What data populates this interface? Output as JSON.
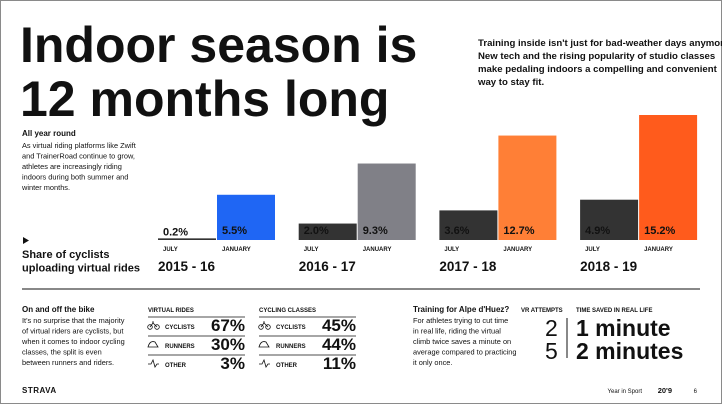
{
  "title_lines": [
    "Indoor season is",
    "12 months long"
  ],
  "intro_lines": [
    "Training inside isn't just for bad-weather days anymore.",
    "New tech and the rising popularity of studio classes",
    "make pedaling indoors a compelling and convenient",
    "way to stay fit."
  ],
  "all_year": {
    "heading": "All year round",
    "lines": [
      "As virtual riding platforms like Zwift",
      "and TrainerRoad continue to grow,",
      "athletes are increasingly riding",
      "indoors during both summer and",
      "winter months."
    ]
  },
  "chart_data": {
    "type": "bar",
    "title_lines": [
      "Share of cyclists",
      "uploading virtual rides"
    ],
    "categories": [
      "2015 - 16",
      "2016 - 17",
      "2017 - 18",
      "2018 - 19"
    ],
    "series": [
      {
        "name": "JULY",
        "color": "#333333",
        "values": [
          0.2,
          2.0,
          3.6,
          4.9
        ],
        "value_labels": [
          "0.2%",
          "2.0%",
          "3.6%",
          "4.9%"
        ]
      },
      {
        "name": "JANUARY",
        "colors": [
          "#1f66f4",
          "#808087",
          "#ff7f36",
          "#ff5b1c"
        ],
        "values": [
          5.5,
          9.3,
          12.7,
          15.2
        ],
        "value_labels": [
          "5.5%",
          "9.3%",
          "12.7%",
          "15.2%"
        ]
      }
    ]
  },
  "on_off": {
    "heading": "On and off the bike",
    "lines": [
      "It's no surprise that the majority",
      "of virtual riders are cyclists, but",
      "when it comes to indoor cycling",
      "classes, the split is even",
      "between runners and riders."
    ],
    "tables": [
      {
        "title": "VIRTUAL RIDES",
        "rows": [
          [
            "CYCLISTS",
            "67%"
          ],
          [
            "RUNNERS",
            "30%"
          ],
          [
            "OTHER",
            "3%"
          ]
        ]
      },
      {
        "title": "CYCLING CLASSES",
        "rows": [
          [
            "CYCLISTS",
            "45%"
          ],
          [
            "RUNNERS",
            "44%"
          ],
          [
            "OTHER",
            "11%"
          ]
        ]
      }
    ]
  },
  "alpe": {
    "heading": "Training for Alpe d'Huez?",
    "lines": [
      "For athletes trying to cut time",
      "in real life, riding the virtual",
      "climb twice saves a minute on",
      "average compared to practicing",
      "it only once."
    ],
    "attempts_heading": "VR ATTEMPTS",
    "attempts": [
      "2",
      "5"
    ],
    "time_heading": "TIME SAVED IN REAL LIFE",
    "times": [
      "1 minute",
      "2 minutes"
    ]
  },
  "footer": {
    "brand": "STRAVA",
    "label": "Year in Sport",
    "year": "20'9",
    "page": "6"
  }
}
